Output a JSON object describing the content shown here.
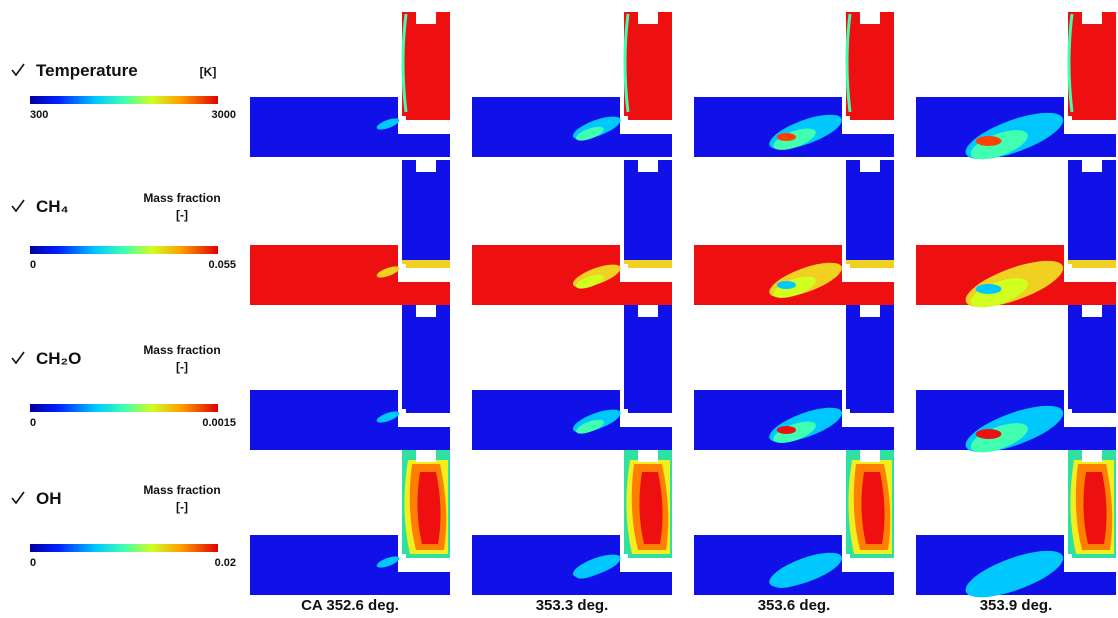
{
  "rows": [
    {
      "label": "Temperature",
      "unit": [
        "[K]"
      ],
      "min": "300",
      "max": "3000"
    },
    {
      "label": "CH₄",
      "unit": [
        "Mass fraction",
        "[-]"
      ],
      "min": "0",
      "max": "0.055"
    },
    {
      "label": "CH₂O",
      "unit": [
        "Mass fraction",
        "[-]"
      ],
      "min": "0",
      "max": "0.0015"
    },
    {
      "label": "OH",
      "unit": [
        "Mass fraction",
        "[-]"
      ],
      "min": "0",
      "max": "0.02"
    }
  ],
  "columns": [
    "CA 352.6 deg.",
    "353.3 deg.",
    "353.6 deg.",
    "353.9 deg."
  ]
}
